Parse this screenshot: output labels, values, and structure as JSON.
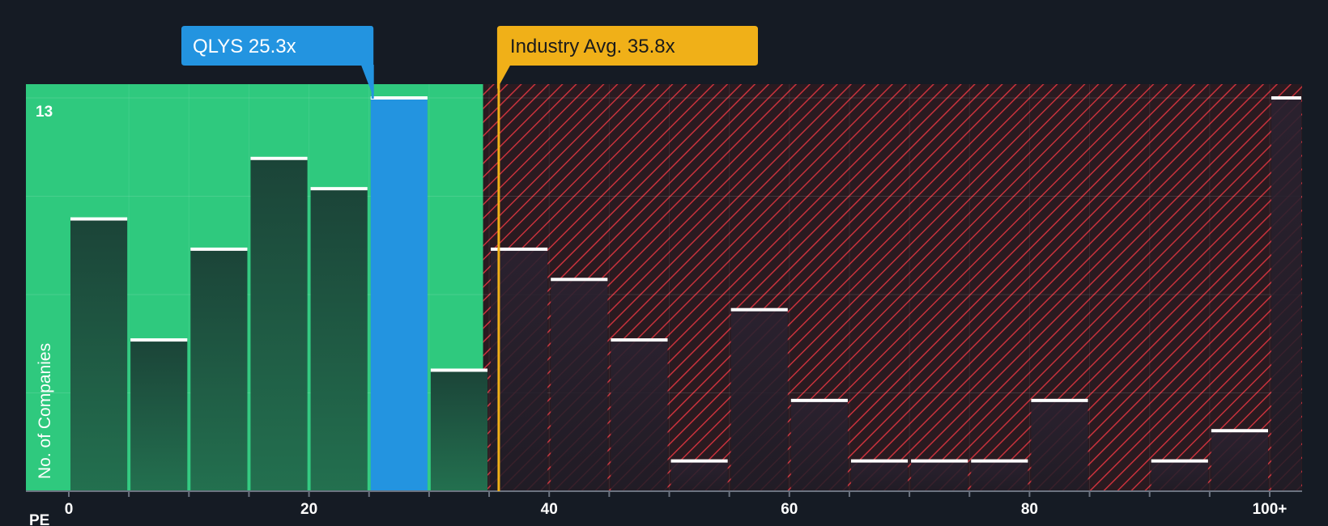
{
  "chart_data": {
    "type": "bar",
    "xlabel": "PE",
    "ylabel": "No. of Companies",
    "x_range": [
      0,
      100
    ],
    "ylim": [
      0,
      13
    ],
    "y_tick_label": "13",
    "x_ticks": [
      {
        "value": 0,
        "label": "0"
      },
      {
        "value": 20,
        "label": "20"
      },
      {
        "value": 40,
        "label": "40"
      },
      {
        "value": 60,
        "label": "60"
      },
      {
        "value": 80,
        "label": "80"
      },
      {
        "value": 100,
        "label": "100+"
      }
    ],
    "bins": [
      {
        "start": 0,
        "end": 5,
        "count": 9
      },
      {
        "start": 5,
        "end": 10,
        "count": 5
      },
      {
        "start": 10,
        "end": 15,
        "count": 8
      },
      {
        "start": 15,
        "end": 20,
        "count": 11
      },
      {
        "start": 20,
        "end": 25,
        "count": 10
      },
      {
        "start": 25,
        "end": 30,
        "count": 13,
        "highlight": true
      },
      {
        "start": 30,
        "end": 35,
        "count": 4
      },
      {
        "start": 35,
        "end": 40,
        "count": 8
      },
      {
        "start": 40,
        "end": 45,
        "count": 7
      },
      {
        "start": 45,
        "end": 50,
        "count": 5
      },
      {
        "start": 50,
        "end": 55,
        "count": 1
      },
      {
        "start": 55,
        "end": 60,
        "count": 6
      },
      {
        "start": 60,
        "end": 65,
        "count": 3
      },
      {
        "start": 65,
        "end": 70,
        "count": 1
      },
      {
        "start": 70,
        "end": 75,
        "count": 1
      },
      {
        "start": 75,
        "end": 80,
        "count": 1
      },
      {
        "start": 80,
        "end": 85,
        "count": 3
      },
      {
        "start": 85,
        "end": 90,
        "count": 0
      },
      {
        "start": 90,
        "end": 95,
        "count": 1
      },
      {
        "start": 95,
        "end": 100,
        "count": 2
      },
      {
        "start": 100,
        "end": 105,
        "count": 13
      }
    ],
    "fair_zone_end": 34.5,
    "company": {
      "name": "QLYS",
      "value": 25.3,
      "label": "QLYS 25.3x"
    },
    "industry_avg": {
      "value": 35.8,
      "label": "Industry Avg. 35.8x"
    },
    "colors": {
      "background": "#151b24",
      "fair_zone": "#2fc97e",
      "bar_in_zone": "#1e4a3c",
      "bar_out_zone": "#241f2c",
      "highlight_bar": "#2394e0",
      "hatch_bg": "#2a1a20",
      "hatch_line": "#c8323c",
      "industry": "#f0b018",
      "cap": "#ffffff"
    }
  }
}
